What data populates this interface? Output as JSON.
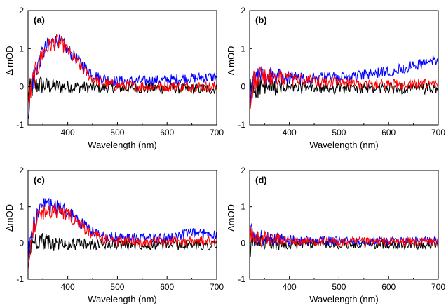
{
  "chart_data": [
    {
      "type": "line",
      "panel_label": "(a)",
      "xlabel": "Wavelength (nm)",
      "ylabel": "Δ mOD",
      "xlim": [
        320,
        700
      ],
      "ylim": [
        -1,
        2
      ],
      "xticks": [
        400,
        500,
        600,
        700
      ],
      "yticks": [
        -1,
        0,
        1,
        2
      ],
      "legend": "none",
      "grid": false,
      "noise": 0.14,
      "series": [
        {
          "color": "#000000",
          "x": [
            320,
            330,
            340,
            350,
            360,
            380,
            400,
            450,
            500,
            600,
            700
          ],
          "y": [
            -0.2,
            0.0,
            0.05,
            0.05,
            0.02,
            0.0,
            0.0,
            -0.02,
            -0.03,
            -0.04,
            -0.06
          ]
        },
        {
          "color": "#0000ff",
          "x": [
            320,
            330,
            340,
            350,
            360,
            370,
            380,
            390,
            400,
            420,
            440,
            460,
            500,
            550,
            600,
            650,
            700
          ],
          "y": [
            -0.6,
            0.2,
            0.6,
            0.9,
            1.08,
            1.18,
            1.2,
            1.12,
            0.97,
            0.7,
            0.45,
            0.25,
            0.14,
            0.15,
            0.18,
            0.23,
            0.26
          ]
        },
        {
          "color": "#ff0000",
          "x": [
            320,
            330,
            340,
            350,
            360,
            370,
            380,
            390,
            400,
            420,
            440,
            460,
            500,
            550,
            600,
            650,
            700
          ],
          "y": [
            -0.5,
            0.15,
            0.55,
            0.88,
            1.05,
            1.15,
            1.17,
            1.1,
            0.95,
            0.62,
            0.32,
            0.13,
            0.03,
            0.02,
            0.01,
            0.01,
            0.0
          ]
        }
      ]
    },
    {
      "type": "line",
      "panel_label": "(b)",
      "xlabel": "Wavelength (nm)",
      "ylabel": "Δ mOD",
      "xlim": [
        320,
        700
      ],
      "ylim": [
        -1,
        2
      ],
      "xticks": [
        400,
        500,
        600,
        700
      ],
      "yticks": [
        -1,
        0,
        1,
        2
      ],
      "legend": "none",
      "grid": false,
      "noise": 0.14,
      "series": [
        {
          "color": "#000000",
          "x": [
            320,
            330,
            340,
            360,
            400,
            450,
            500,
            600,
            700
          ],
          "y": [
            -0.1,
            0.0,
            0.0,
            -0.02,
            -0.03,
            -0.04,
            -0.04,
            -0.04,
            -0.05
          ]
        },
        {
          "color": "#0000ff",
          "x": [
            320,
            330,
            340,
            360,
            400,
            450,
            500,
            550,
            600,
            650,
            700
          ],
          "y": [
            -0.3,
            0.2,
            0.3,
            0.28,
            0.25,
            0.22,
            0.25,
            0.3,
            0.4,
            0.55,
            0.72
          ]
        },
        {
          "color": "#ff0000",
          "x": [
            320,
            330,
            340,
            360,
            400,
            450,
            500,
            550,
            600,
            650,
            700
          ],
          "y": [
            -0.3,
            0.2,
            0.28,
            0.25,
            0.2,
            0.15,
            0.1,
            0.07,
            0.06,
            0.06,
            0.07
          ]
        }
      ]
    },
    {
      "type": "line",
      "panel_label": "(c)",
      "xlabel": "Wavelength (nm)",
      "ylabel": "ΔmOD",
      "xlim": [
        320,
        700
      ],
      "ylim": [
        -1,
        2
      ],
      "xticks": [
        400,
        500,
        600,
        700
      ],
      "yticks": [
        -1,
        0,
        1,
        2
      ],
      "legend": "none",
      "grid": false,
      "noise": 0.14,
      "series": [
        {
          "color": "#000000",
          "x": [
            320,
            330,
            340,
            350,
            360,
            380,
            400,
            450,
            500,
            600,
            700
          ],
          "y": [
            -0.3,
            0.05,
            0.1,
            0.05,
            0.0,
            -0.02,
            -0.03,
            -0.04,
            -0.04,
            -0.05,
            -0.06
          ]
        },
        {
          "color": "#0000ff",
          "x": [
            320,
            330,
            340,
            350,
            360,
            380,
            400,
            420,
            440,
            460,
            500,
            550,
            600,
            650,
            700
          ],
          "y": [
            -0.4,
            0.45,
            0.8,
            0.98,
            1.02,
            0.98,
            0.85,
            0.62,
            0.4,
            0.25,
            0.15,
            0.13,
            0.15,
            0.27,
            0.24
          ]
        },
        {
          "color": "#ff0000",
          "x": [
            320,
            330,
            340,
            350,
            360,
            380,
            400,
            420,
            440,
            460,
            500,
            550,
            600,
            650,
            700
          ],
          "y": [
            -0.4,
            0.4,
            0.7,
            0.85,
            0.9,
            0.87,
            0.78,
            0.55,
            0.32,
            0.16,
            0.05,
            0.03,
            0.02,
            0.05,
            0.05
          ]
        }
      ]
    },
    {
      "type": "line",
      "panel_label": "(d)",
      "xlabel": "Wavelength (nm)",
      "ylabel": "ΔmOD",
      "xlim": [
        320,
        700
      ],
      "ylim": [
        -1,
        2
      ],
      "xticks": [
        400,
        500,
        600,
        700
      ],
      "yticks": [
        -1,
        0,
        1,
        2
      ],
      "legend": "none",
      "grid": false,
      "noise": 0.12,
      "series": [
        {
          "color": "#000000",
          "x": [
            320,
            330,
            340,
            360,
            400,
            450,
            500,
            600,
            700
          ],
          "y": [
            -0.2,
            0.0,
            0.0,
            -0.02,
            -0.03,
            -0.03,
            -0.04,
            -0.04,
            -0.05
          ]
        },
        {
          "color": "#0000ff",
          "x": [
            320,
            330,
            340,
            360,
            400,
            450,
            500,
            600,
            700
          ],
          "y": [
            0.3,
            0.22,
            0.15,
            0.12,
            0.08,
            0.06,
            0.05,
            0.06,
            0.07
          ]
        },
        {
          "color": "#ff0000",
          "x": [
            320,
            330,
            340,
            360,
            400,
            450,
            500,
            600,
            700
          ],
          "y": [
            0.2,
            0.15,
            0.12,
            0.08,
            0.05,
            0.04,
            0.03,
            0.04,
            0.03
          ]
        }
      ]
    }
  ]
}
